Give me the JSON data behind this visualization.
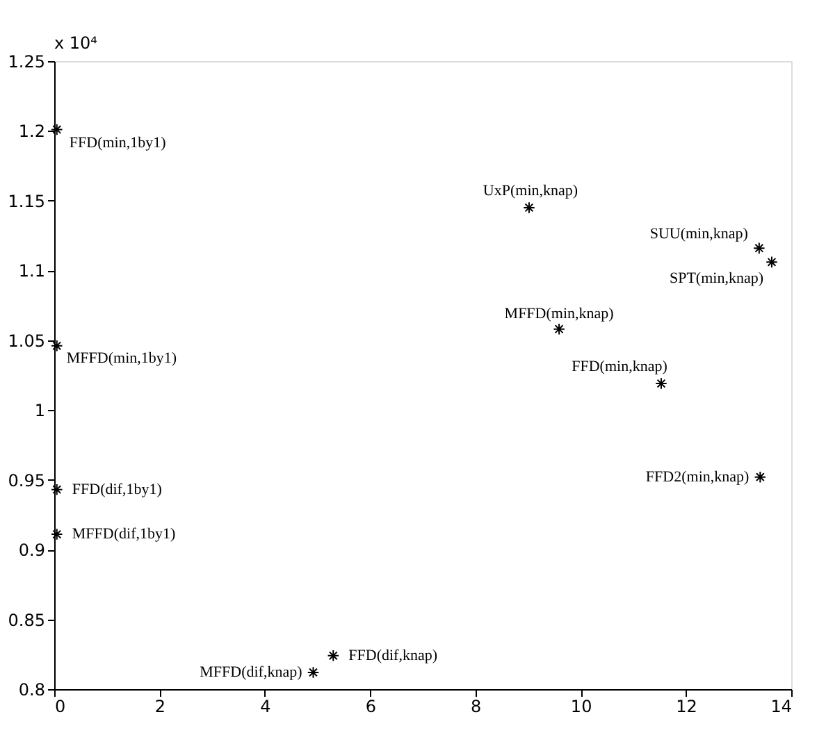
{
  "chart_data": {
    "type": "scatter",
    "x": [
      0.05,
      0.05,
      0.05,
      0.05,
      4.92,
      5.3,
      9.02,
      9.59,
      11.53,
      13.39,
      13.63,
      13.41
    ],
    "series": [
      {
        "color": "#000000",
        "values": [
          1.201,
          1.046,
          0.943,
          0.911,
          0.812,
          0.824,
          1.145,
          1.058,
          1.019,
          1.116,
          1.106,
          0.952
        ]
      }
    ],
    "xlim": [
      0,
      14
    ],
    "xticks": [
      0,
      2,
      4,
      6,
      8,
      10,
      12,
      14
    ],
    "ylim": [
      0.8,
      1.25
    ],
    "yticks": [
      0.8,
      0.85,
      0.9,
      0.95,
      1,
      1.05,
      1.1,
      1.15,
      1.2,
      1.25
    ],
    "marker": "cross",
    "grid": false,
    "annotations": [
      {
        "text": "FFD(min,1by1)",
        "x": 0.05,
        "y": 1.201
      },
      {
        "text": "MFFD(min,1by1)",
        "x": 0.05,
        "y": 1.046
      },
      {
        "text": "FFD(dif,1by1)",
        "x": 0.05,
        "y": 0.943
      },
      {
        "text": "MFFD(dif,1by1)",
        "x": 0.05,
        "y": 0.911
      },
      {
        "text": "MFFD(dif,knap)",
        "x": 4.92,
        "y": 0.812
      },
      {
        "text": "FFD(dif,knap)",
        "x": 5.3,
        "y": 0.824
      },
      {
        "text": "UxP(min,knap)",
        "x": 9.02,
        "y": 1.145
      },
      {
        "text": "MFFD(min,knap)",
        "x": 9.59,
        "y": 1.058
      },
      {
        "text": "FFD(min,knap)",
        "x": 11.53,
        "y": 1.019
      },
      {
        "text": "SUU(min,knap)",
        "x": 13.39,
        "y": 1.116
      },
      {
        "text": "SPT(min,knap)",
        "x": 13.63,
        "y": 1.106
      },
      {
        "text": "FFD2(min,knap)",
        "x": 13.41,
        "y": 0.952
      },
      "x 10⁴"
    ]
  }
}
